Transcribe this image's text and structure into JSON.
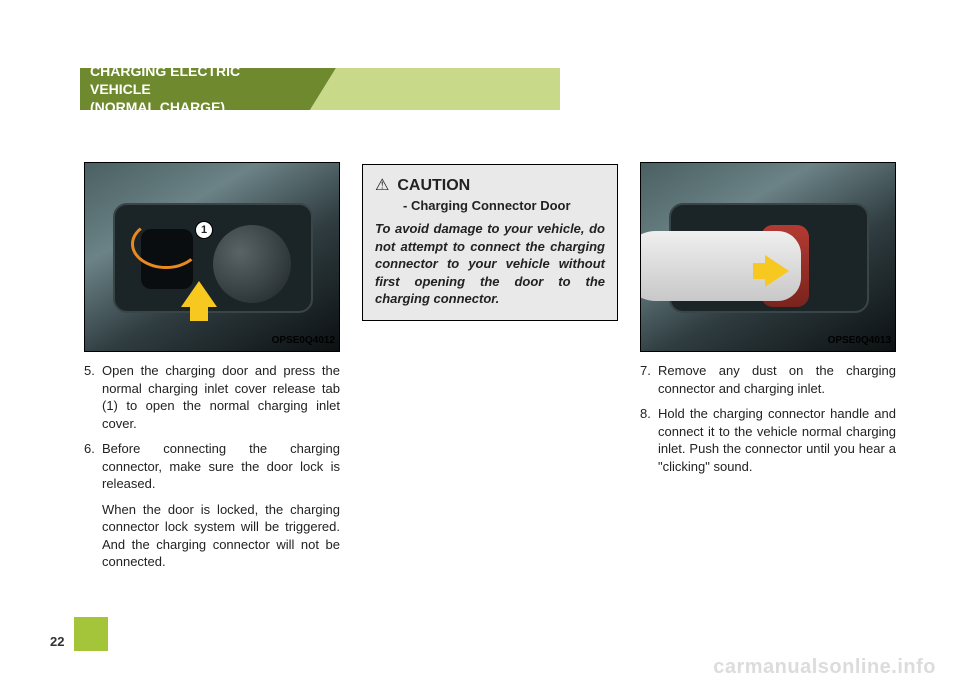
{
  "header": {
    "line1": "CHARGING ELECTRIC VEHICLE",
    "line2": "(NORMAL CHARGE)"
  },
  "column1": {
    "photo_label": "OPSE0Q4012",
    "marker": "1",
    "steps": [
      {
        "num": "5.",
        "text": "Open the charging door and press the normal charging inlet cover release tab (1) to open the normal charging inlet cover."
      },
      {
        "num": "6.",
        "text": "Before connecting the charging connector, make sure the door lock is released."
      }
    ],
    "followup": "When the door is locked, the charging connector lock system will be triggered. And the charging connector will not be connected."
  },
  "column2": {
    "caution": {
      "icon": "⚠",
      "title": "CAUTION",
      "subtitle": "- Charging Connector Door",
      "body": "To avoid damage to your vehicle, do not attempt to connect the charging connector to your vehicle without first opening the door to the charging connector."
    }
  },
  "column3": {
    "photo_label": "OPSE0Q4013",
    "steps": [
      {
        "num": "7.",
        "text": "Remove any dust on the charging connector and charging inlet."
      },
      {
        "num": "8.",
        "text": "Hold the charging connector handle and connect it to the vehicle normal charging inlet. Push the connector until you hear a \"clicking\" sound."
      }
    ]
  },
  "page_number": "22",
  "watermark": "carmanualsonline.info",
  "colors": {
    "header_dark": "#6f8a2e",
    "header_light": "#c8d98a",
    "page_square": "#a4c53a",
    "caution_bg": "#e9e9e9"
  }
}
